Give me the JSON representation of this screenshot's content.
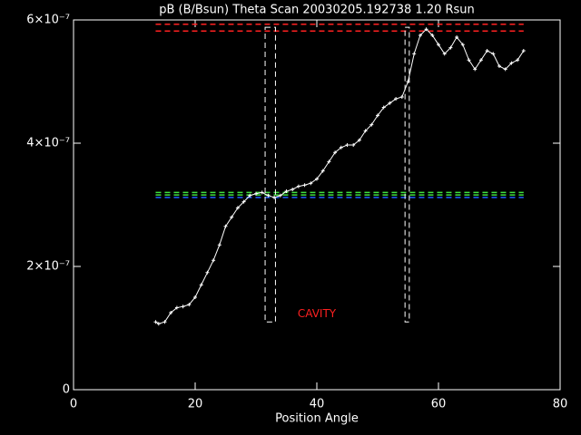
{
  "chart_data": {
    "type": "line",
    "title": "pB (B/Bsun) Theta Scan 20030205.192738 1.20 Rsun",
    "x_label": "Position Angle",
    "x": [
      13.5,
      14,
      15,
      16,
      17,
      18,
      19,
      20,
      21,
      22,
      23,
      24,
      25,
      26,
      27,
      28,
      29,
      30,
      31,
      32,
      33,
      34,
      35,
      36,
      37,
      38,
      39,
      40,
      41,
      42,
      43,
      44,
      45,
      46,
      47,
      48,
      49,
      50,
      51,
      52,
      53,
      54,
      55,
      56,
      57,
      58,
      59,
      60,
      61,
      62,
      63,
      64,
      65,
      66,
      67,
      68,
      69,
      70,
      71,
      72,
      73,
      74
    ],
    "series": [
      {
        "color": "#ffffff",
        "values": [
          1.1e-07,
          1.07e-07,
          1.1e-07,
          1.25e-07,
          1.33e-07,
          1.35e-07,
          1.38e-07,
          1.5e-07,
          1.7e-07,
          1.9e-07,
          2.1e-07,
          2.35e-07,
          2.65e-07,
          2.8e-07,
          2.95e-07,
          3.05e-07,
          3.15e-07,
          3.18e-07,
          3.2e-07,
          3.15e-07,
          3.12e-07,
          3.15e-07,
          3.22e-07,
          3.25e-07,
          3.3e-07,
          3.32e-07,
          3.35e-07,
          3.42e-07,
          3.55e-07,
          3.7e-07,
          3.85e-07,
          3.93e-07,
          3.97e-07,
          3.97e-07,
          4.05e-07,
          4.2e-07,
          4.3e-07,
          4.45e-07,
          4.58e-07,
          4.65e-07,
          4.72e-07,
          4.75e-07,
          5e-07,
          5.45e-07,
          5.75e-07,
          5.85e-07,
          5.75e-07,
          5.6e-07,
          5.45e-07,
          5.55e-07,
          5.72e-07,
          5.6e-07,
          5.35e-07,
          5.2e-07,
          5.35e-07,
          5.5e-07,
          5.45e-07,
          5.25e-07,
          5.2e-07,
          5.3e-07,
          5.35e-07,
          5.5e-07
        ]
      }
    ],
    "reference_lines": [
      {
        "y": 5.93e-07,
        "x0": 13.5,
        "x1": 74,
        "color": "#ff2020"
      },
      {
        "y": 5.82e-07,
        "x0": 13.5,
        "x1": 74,
        "color": "#ff2020"
      },
      {
        "y": 3.2e-07,
        "x0": 13.5,
        "x1": 74,
        "color": "#40e040"
      },
      {
        "y": 3.16e-07,
        "x0": 13.5,
        "x1": 74,
        "color": "#40e040"
      },
      {
        "y": 3.12e-07,
        "x0": 13.5,
        "x1": 74,
        "color": "#2060ff"
      }
    ],
    "boxes": [
      {
        "x0": 31.5,
        "x1": 33.2,
        "y0": 1.1e-07,
        "y1": 5.88e-07,
        "color": "#ffffff"
      },
      {
        "x0": 54.5,
        "x1": 55.2,
        "y0": 1.1e-07,
        "y1": 5.88e-07,
        "color": "#ffffff"
      }
    ],
    "annotations": [
      {
        "text": "CAVITY",
        "x": 40,
        "y": 1.23e-07,
        "color": "#ff2020"
      }
    ],
    "xlim": [
      0,
      80
    ],
    "xticks": [
      0,
      20,
      40,
      60,
      80
    ],
    "ylim": [
      0,
      6e-07
    ],
    "yticks": [
      0,
      {
        "value": 2e-07,
        "label": "2×10⁻⁷"
      },
      {
        "value": 4e-07,
        "label": "4×10⁻⁷"
      },
      {
        "value": 6e-07,
        "label": "6×10⁻⁷"
      }
    ]
  }
}
